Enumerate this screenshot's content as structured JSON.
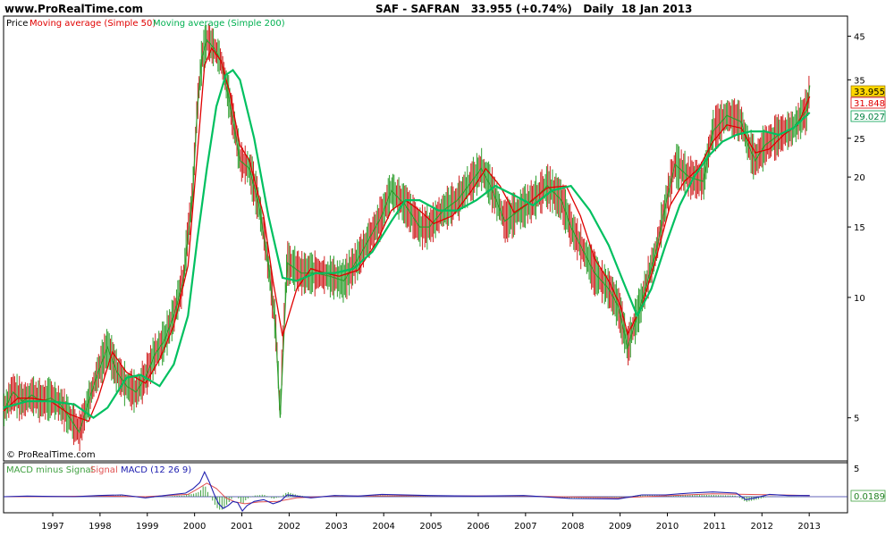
{
  "header": {
    "site": "www.ProRealTime.com",
    "title": "SAF - SAFRAN   33.955 (+0.74%)   Daily  18 Jan 2013"
  },
  "colors": {
    "price_up": "#2e9e2e",
    "price_down": "#d02020",
    "sma50": "#e00000",
    "sma200": "#00c060",
    "macd": "#2020b0",
    "signal": "#e05050",
    "histogram": "#40a040",
    "last_price_bg": "#ffd700"
  },
  "chart_data": [
    {
      "type": "line",
      "legend": [
        "Price",
        "Moving average (Simple 50)",
        "Moving average (Simple 200)"
      ],
      "scale": "log",
      "ylim": [
        3.9,
        50
      ],
      "y_ticks": [
        "45",
        "35",
        "25",
        "20",
        "15",
        "10",
        "5"
      ],
      "x_ticks": [
        "1997",
        "1998",
        "1999",
        "2000",
        "2001",
        "2002",
        "2003",
        "2004",
        "2005",
        "2006",
        "2007",
        "2008",
        "2009",
        "2010",
        "2011",
        "2012",
        "2013"
      ],
      "xlim": [
        1996.0,
        2013.85
      ],
      "series": [
        {
          "name": "Price",
          "x": [
            1996.0,
            1996.2,
            1996.4,
            1996.6,
            1996.8,
            1997.0,
            1997.2,
            1997.4,
            1997.6,
            1997.8,
            1998.0,
            1998.2,
            1998.4,
            1998.6,
            1998.8,
            1999.0,
            1999.2,
            1999.4,
            1999.6,
            1999.8,
            2000.0,
            2000.1,
            2000.2,
            2000.3,
            2000.45,
            2000.6,
            2000.8,
            2001.0,
            2001.2,
            2001.4,
            2001.6,
            2001.75,
            2001.85,
            2002.0,
            2002.3,
            2002.6,
            2002.9,
            2003.2,
            2003.5,
            2003.8,
            2004.0,
            2004.2,
            2004.5,
            2004.8,
            2005.0,
            2005.3,
            2005.6,
            2005.9,
            2006.1,
            2006.3,
            2006.6,
            2006.9,
            2007.2,
            2007.5,
            2007.8,
            2008.0,
            2008.2,
            2008.5,
            2008.8,
            2009.0,
            2009.2,
            2009.5,
            2009.8,
            2010.0,
            2010.2,
            2010.5,
            2010.8,
            2011.0,
            2011.3,
            2011.6,
            2011.75,
            2011.9,
            2012.1,
            2012.4,
            2012.7,
            2013.0,
            2013.05
          ],
          "values": [
            5.2,
            5.8,
            5.5,
            5.7,
            5.5,
            5.6,
            5.4,
            5.0,
            4.6,
            5.5,
            6.5,
            7.5,
            6.5,
            6.0,
            5.8,
            6.3,
            7.2,
            7.8,
            9.0,
            11.0,
            18,
            30,
            40,
            44,
            42,
            39,
            30,
            22,
            21,
            17,
            12,
            8.5,
            5.0,
            12.2,
            11.5,
            11.5,
            11.3,
            11.0,
            12.5,
            14.5,
            16.0,
            18.5,
            17.0,
            15.0,
            15.0,
            16.5,
            17.5,
            19.5,
            21.0,
            19.0,
            15.5,
            16.5,
            17.5,
            19.0,
            17.5,
            15.0,
            13.5,
            11.5,
            10.5,
            9.5,
            7.5,
            9.8,
            13.0,
            17.0,
            21.5,
            20.0,
            19.5,
            26.0,
            28.5,
            27.5,
            24.0,
            22.0,
            24.0,
            25.5,
            26.5,
            29.5,
            33.9
          ]
        },
        {
          "name": "Moving average (Simple 50)",
          "x": [
            1996.0,
            1996.3,
            1996.6,
            1997.0,
            1997.4,
            1997.8,
            1998.0,
            1998.3,
            1998.6,
            1999.0,
            1999.3,
            1999.6,
            1999.9,
            2000.1,
            2000.25,
            2000.4,
            2000.6,
            2000.8,
            2001.0,
            2001.2,
            2001.5,
            2001.7,
            2001.9,
            2002.2,
            2002.5,
            2002.8,
            2003.1,
            2003.5,
            2003.9,
            2004.2,
            2004.5,
            2004.8,
            2005.1,
            2005.5,
            2005.9,
            2006.2,
            2006.5,
            2006.8,
            2007.1,
            2007.5,
            2007.9,
            2008.2,
            2008.5,
            2008.8,
            2009.05,
            2009.2,
            2009.5,
            2009.8,
            2010.1,
            2010.4,
            2010.7,
            2011.0,
            2011.3,
            2011.6,
            2011.9,
            2012.2,
            2012.5,
            2012.8,
            2013.05
          ],
          "values": [
            5.2,
            5.6,
            5.6,
            5.5,
            5.1,
            4.9,
            5.6,
            7.3,
            6.5,
            6.1,
            7.0,
            8.5,
            12.0,
            23.0,
            38.0,
            42.0,
            39.0,
            32.0,
            24.0,
            22.0,
            16.0,
            11.0,
            8.0,
            10.5,
            11.8,
            11.5,
            11.3,
            11.7,
            13.8,
            16.5,
            17.5,
            16.5,
            15.3,
            16.0,
            18.5,
            21.0,
            19.0,
            16.3,
            17.2,
            18.8,
            19.0,
            16.0,
            12.5,
            11.0,
            9.5,
            8.1,
            9.5,
            12.5,
            17.0,
            19.5,
            21.0,
            24.5,
            27.0,
            26.5,
            23.0,
            23.5,
            25.5,
            27.0,
            31.8
          ]
        },
        {
          "name": "Moving average (Simple 200)",
          "x": [
            1996.0,
            1996.5,
            1997.0,
            1997.5,
            1997.9,
            1998.2,
            1998.6,
            1998.9,
            1999.3,
            1999.6,
            1999.9,
            2000.1,
            2000.3,
            2000.5,
            2000.7,
            2000.85,
            2001.0,
            2001.3,
            2001.6,
            2001.9,
            2002.2,
            2002.6,
            2003.0,
            2003.4,
            2003.8,
            2004.2,
            2004.5,
            2004.8,
            2005.2,
            2005.6,
            2006.0,
            2006.4,
            2006.8,
            2007.2,
            2007.6,
            2008.0,
            2008.4,
            2008.8,
            2009.1,
            2009.4,
            2009.7,
            2010.0,
            2010.3,
            2010.6,
            2010.9,
            2011.2,
            2011.5,
            2011.8,
            2012.1,
            2012.4,
            2012.7,
            2013.05
          ],
          "values": [
            5.3,
            5.5,
            5.5,
            5.4,
            5.0,
            5.3,
            6.3,
            6.4,
            6.0,
            6.8,
            9.0,
            14.0,
            21.0,
            30.0,
            36.0,
            37.0,
            35.0,
            25.0,
            16.0,
            11.2,
            11.0,
            11.5,
            11.5,
            11.8,
            13.0,
            15.5,
            17.5,
            17.5,
            16.5,
            16.5,
            17.5,
            19.0,
            18.0,
            17.0,
            18.5,
            19.0,
            16.5,
            13.5,
            11.0,
            9.0,
            10.5,
            13.5,
            17.0,
            20.0,
            22.5,
            24.5,
            25.5,
            26.0,
            26.0,
            25.5,
            26.5,
            29.0
          ]
        }
      ],
      "labels": {
        "last_price": "33.955",
        "sma50_last": "31.848",
        "sma200_last": "29.027"
      },
      "watermark": "© ProRealTime.com"
    },
    {
      "type": "line",
      "legend": [
        "MACD minus Signal",
        "Signal",
        "MACD (12 26 9)"
      ],
      "y_ticks": [
        "5"
      ],
      "ylim": [
        -3,
        5
      ],
      "series": [
        {
          "name": "MACD (12 26 9)",
          "x": [
            1996.0,
            1996.5,
            1997.0,
            1997.5,
            1998.0,
            1998.5,
            1999.0,
            1999.5,
            1999.85,
            2000.0,
            2000.15,
            2000.25,
            2000.35,
            2000.45,
            2000.55,
            2000.65,
            2000.75,
            2000.85,
            2000.95,
            2001.05,
            2001.15,
            2001.3,
            2001.5,
            2001.7,
            2001.85,
            2002.0,
            2002.5,
            2003.0,
            2003.5,
            2004.0,
            2005.0,
            2006.0,
            2007.0,
            2008.0,
            2009.0,
            2009.5,
            2010.0,
            2010.5,
            2011.0,
            2011.5,
            2011.7,
            2011.9,
            2012.2,
            2012.6,
            2013.05
          ],
          "values": [
            0.0,
            0.1,
            0.05,
            0.0,
            0.2,
            0.3,
            -0.2,
            0.3,
            0.6,
            1.3,
            2.4,
            4.2,
            2.5,
            0.5,
            -1.2,
            -2.0,
            -1.5,
            -0.8,
            -1.0,
            -2.5,
            -1.5,
            -0.8,
            -0.5,
            -1.2,
            -0.8,
            0.3,
            -0.2,
            0.2,
            0.1,
            0.4,
            0.2,
            0.1,
            0.2,
            -0.3,
            -0.4,
            0.3,
            0.3,
            0.6,
            0.8,
            0.6,
            -0.5,
            -0.2,
            0.4,
            0.2,
            0.2
          ]
        },
        {
          "name": "Signal",
          "x": [
            1996.0,
            1997.0,
            1998.0,
            1999.0,
            1999.9,
            2000.1,
            2000.3,
            2000.5,
            2000.7,
            2000.9,
            2001.1,
            2001.4,
            2001.8,
            2002.2,
            2003.0,
            2005.0,
            2007.0,
            2009.0,
            2011.0,
            2013.05
          ],
          "values": [
            0.0,
            0.05,
            0.1,
            0.0,
            0.4,
            1.3,
            2.3,
            1.4,
            -0.2,
            -0.9,
            -1.2,
            -0.9,
            -0.8,
            -0.2,
            0.1,
            0.15,
            0.1,
            -0.2,
            0.5,
            0.2
          ]
        }
      ],
      "labels": {
        "macd_last": "0.0189"
      }
    }
  ]
}
